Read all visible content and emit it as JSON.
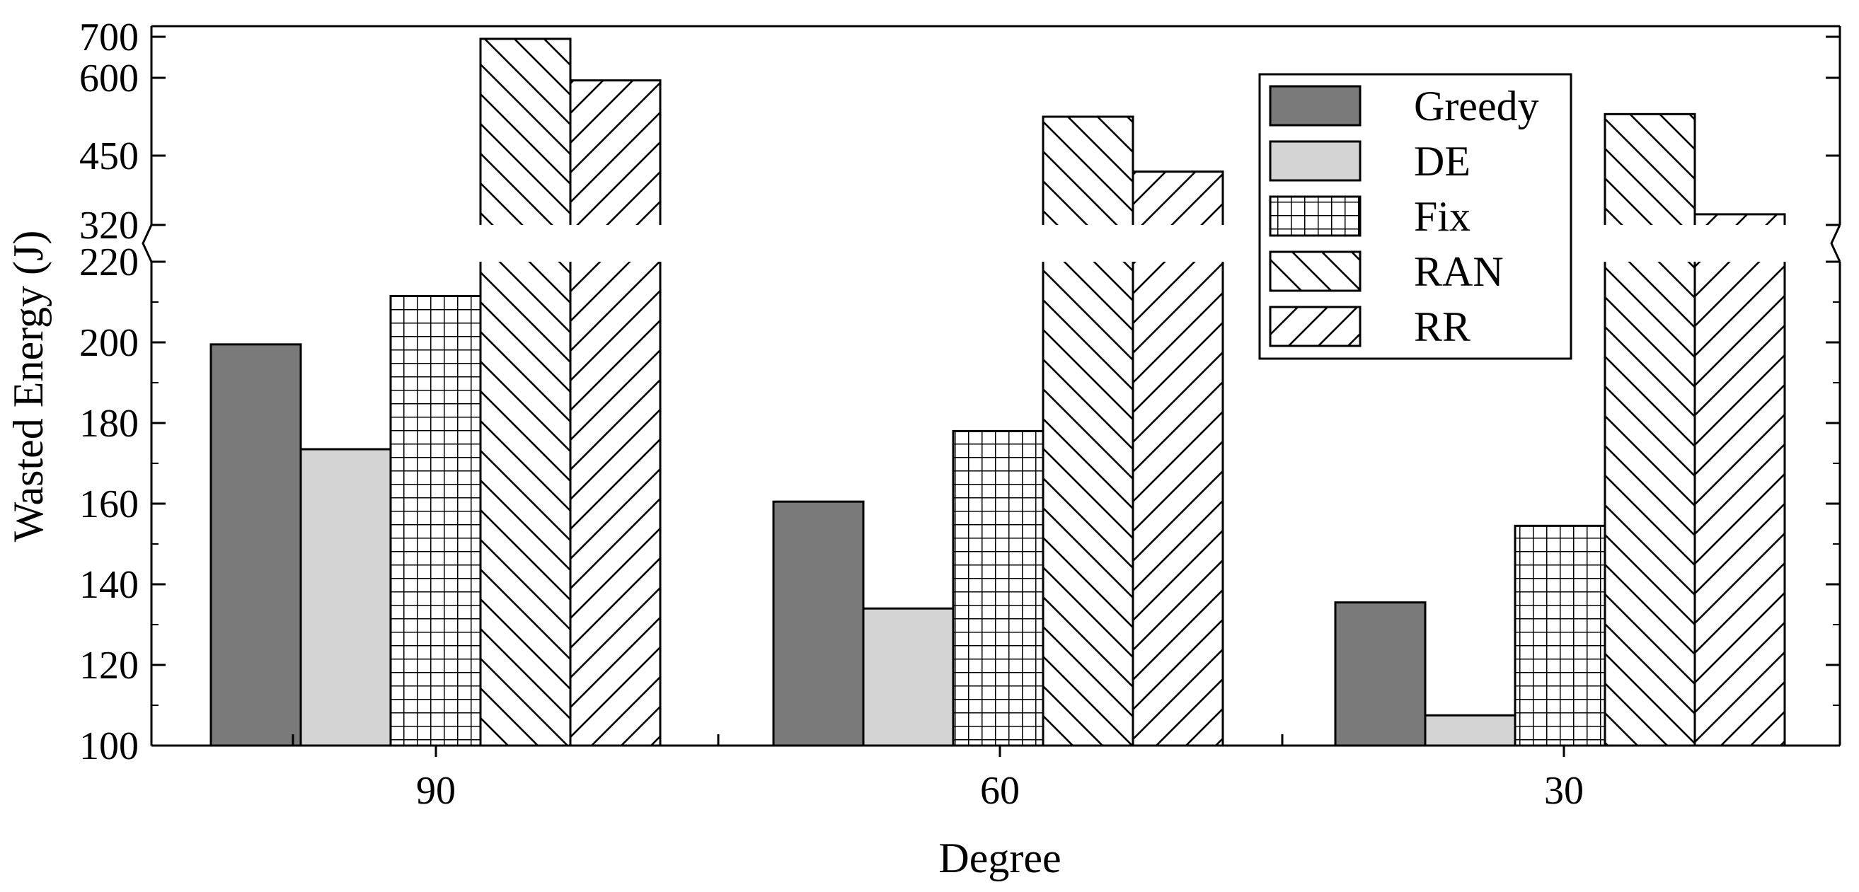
{
  "chart_data": {
    "type": "bar",
    "xlabel": "Degree",
    "ylabel": "Wasted Energy (J)",
    "categories": [
      "90",
      "60",
      "30"
    ],
    "series": [
      {
        "name": "Greedy",
        "values": [
          199.5,
          160.5,
          135.5
        ],
        "fill": "#7a7a7a",
        "pattern": "solid"
      },
      {
        "name": "DE",
        "values": [
          173.5,
          134,
          107.5
        ],
        "fill": "#d4d4d4",
        "pattern": "solid"
      },
      {
        "name": "Fix",
        "values": [
          211.5,
          178,
          154.5
        ],
        "fill": "#ffffff",
        "pattern": "grid"
      },
      {
        "name": "RAN",
        "values": [
          695,
          525,
          530
        ],
        "fill": "#ffffff",
        "pattern": "backslash"
      },
      {
        "name": "RR",
        "values": [
          595,
          420,
          340
        ],
        "fill": "#ffffff",
        "pattern": "slash"
      }
    ],
    "y_axis": {
      "broken": true,
      "lower_segment": {
        "range": [
          100,
          220
        ],
        "ticks": [
          "100",
          "120",
          "140",
          "160",
          "180",
          "200",
          "220"
        ]
      },
      "upper_segment": {
        "range": [
          320,
          700
        ],
        "ticks": [
          "320",
          "450",
          "600",
          "700"
        ]
      }
    },
    "legend_position": "top-right",
    "grid": false
  }
}
